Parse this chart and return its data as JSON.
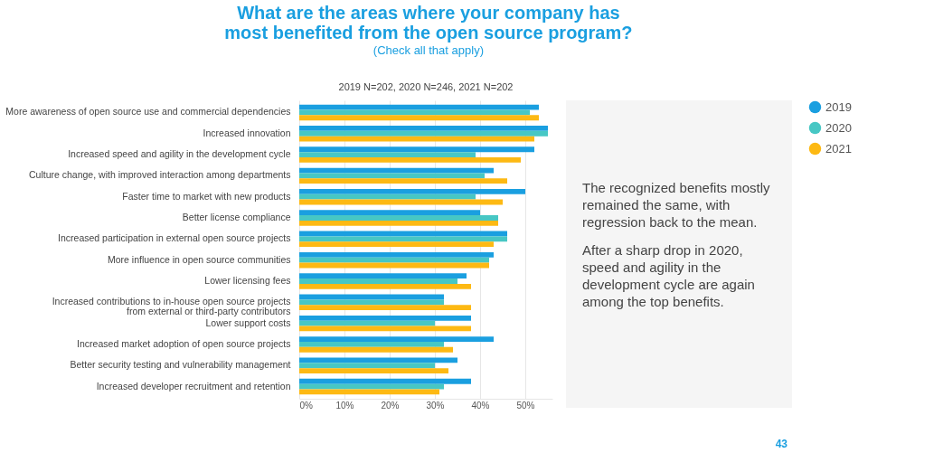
{
  "chart_data": {
    "type": "bar",
    "orientation": "horizontal",
    "title": "What are the areas where your company has most benefited from the open source program?",
    "subtitle": "(Check all that apply)",
    "categories": [
      "More awareness of open source use and commercial dependencies",
      "Increased innovation",
      "Increased speed and agility in the development cycle",
      "Culture change, with improved interaction among departments",
      "Faster time to market with new products",
      "Better license compliance",
      "Increased participation in external open source projects",
      "More influence in open source communities",
      "Lower licensing fees",
      "Increased contributions to in-house open source projects\nfrom external or third-party contributors",
      "Lower support costs",
      "Increased market adoption of open source projects",
      "Better security testing and vulnerability management",
      "Increased developer recruitment and retention"
    ],
    "series": [
      {
        "name": "2019",
        "color": "#1a9fe0",
        "values": [
          53,
          55,
          52,
          43,
          50,
          40,
          46,
          43,
          37,
          32,
          38,
          43,
          35,
          38
        ]
      },
      {
        "name": "2020",
        "color": "#47c7c4",
        "values": [
          51,
          55,
          39,
          41,
          39,
          44,
          46,
          42,
          35,
          32,
          30,
          32,
          30,
          32
        ]
      },
      {
        "name": "2021",
        "color": "#fdb913",
        "values": [
          53,
          52,
          49,
          46,
          45,
          44,
          43,
          42,
          38,
          38,
          38,
          34,
          33,
          31
        ]
      }
    ],
    "xlim": [
      0,
      56
    ],
    "xticks": [
      {
        "value": 0,
        "label": "0%"
      },
      {
        "value": 10,
        "label": "10%"
      },
      {
        "value": 20,
        "label": "20%"
      },
      {
        "value": 30,
        "label": "30%"
      },
      {
        "value": 40,
        "label": "40%"
      },
      {
        "value": 50,
        "label": "50%"
      }
    ],
    "grid": "x",
    "legend": "right",
    "annotations": [
      "2019 N=202, 2020 N=246, 2021 N=202",
      "The recognized benefits mostly remained the same, with regression back to the mean.",
      "After a sharp drop in 2020, speed and agility in the development cycle are again among the top benefits.",
      "43"
    ]
  }
}
